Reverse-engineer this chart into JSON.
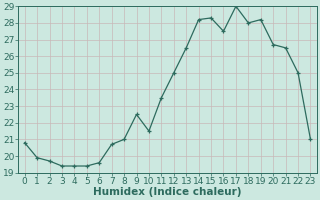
{
  "x": [
    0,
    1,
    2,
    3,
    4,
    5,
    6,
    7,
    8,
    9,
    10,
    11,
    12,
    13,
    14,
    15,
    16,
    17,
    18,
    19,
    20,
    21,
    22,
    23
  ],
  "y": [
    20.8,
    19.9,
    19.7,
    19.4,
    19.4,
    19.4,
    19.6,
    20.7,
    21.0,
    22.5,
    21.5,
    23.5,
    25.0,
    26.5,
    28.2,
    28.3,
    27.5,
    29.0,
    28.0,
    28.2,
    26.7,
    26.5,
    25.0,
    21.0
  ],
  "line_color": "#2d6b5e",
  "marker": "+",
  "bg_color": "#cce8e0",
  "grid_color": "#c8b8b8",
  "label_color": "#2d6b5e",
  "xlabel": "Humidex (Indice chaleur)",
  "ylim": [
    19,
    29
  ],
  "yticks": [
    19,
    20,
    21,
    22,
    23,
    24,
    25,
    26,
    27,
    28,
    29
  ],
  "xticks": [
    0,
    1,
    2,
    3,
    4,
    5,
    6,
    7,
    8,
    9,
    10,
    11,
    12,
    13,
    14,
    15,
    16,
    17,
    18,
    19,
    20,
    21,
    22,
    23
  ],
  "font_size": 6.5,
  "xlabel_fontsize": 7.5
}
